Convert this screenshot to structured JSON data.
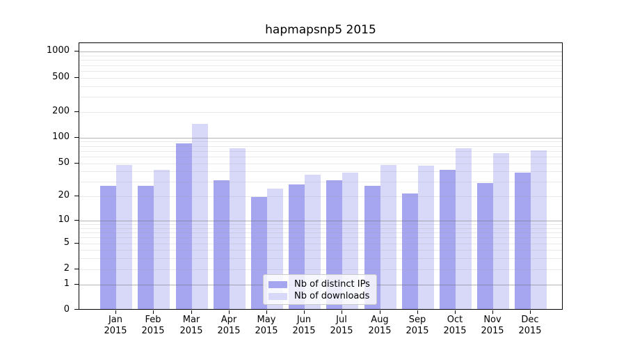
{
  "chart_data": {
    "type": "bar",
    "title": "hapmapsnp5 2015",
    "categories": [
      "Jan",
      "Feb",
      "Mar",
      "Apr",
      "May",
      "Jun",
      "Jul",
      "Aug",
      "Sep",
      "Oct",
      "Nov",
      "Dec"
    ],
    "year_label": "2015",
    "series": [
      {
        "name": "Nb of distinct IPs",
        "color": "#a5a5f0",
        "values": [
          26,
          26,
          82,
          30,
          19,
          27,
          30,
          26,
          21,
          40,
          28,
          37
        ]
      },
      {
        "name": "Nb of downloads",
        "color": "#d8d8f8",
        "values": [
          46,
          40,
          140,
          73,
          24,
          35,
          37,
          46,
          45,
          72,
          63,
          68
        ]
      }
    ],
    "xlabel": "",
    "ylabel": "",
    "yscale": "log1p",
    "ylim": [
      0,
      1260
    ],
    "yticks": [
      0,
      1,
      2,
      5,
      10,
      20,
      50,
      100,
      200,
      500,
      1000
    ],
    "major_gridlines": [
      1,
      10,
      100,
      1000
    ],
    "minor_gridlines": [
      2,
      3,
      4,
      5,
      6,
      7,
      8,
      9,
      20,
      30,
      40,
      50,
      60,
      70,
      80,
      90,
      200,
      300,
      400,
      500,
      600,
      700,
      800,
      900
    ],
    "grid": true,
    "legend_position": "lower center",
    "grid_minor_color": "#eaeaea",
    "grid_major_color": "#b4b4b4",
    "axis_color": "#000000",
    "background_color": "#ffffff"
  }
}
